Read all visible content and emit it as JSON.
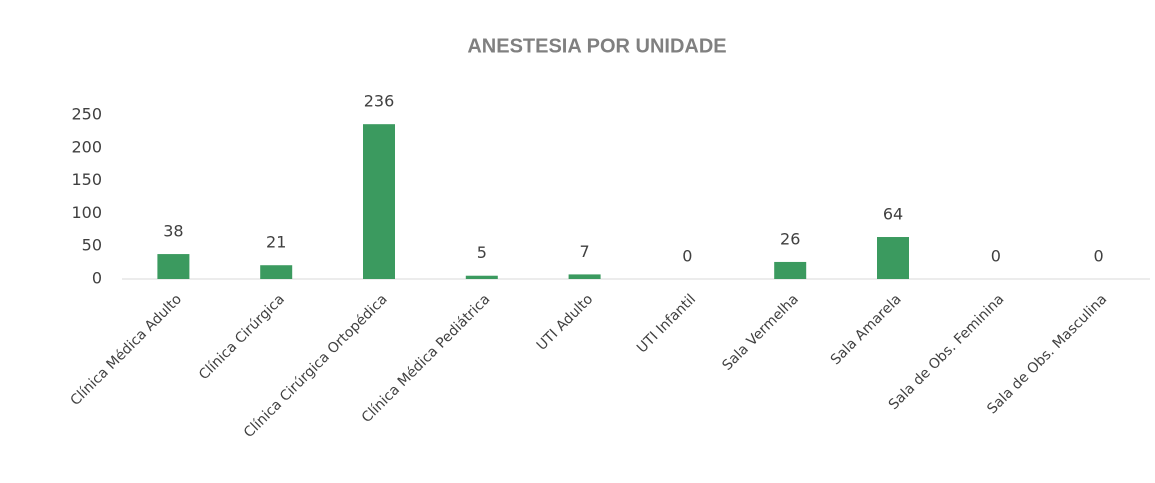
{
  "chart_data": {
    "type": "bar",
    "title": "ANESTESIA POR UNIDADE",
    "categories": [
      "Clínica Médica Adulto",
      "Clínica Cirúrgica",
      "Clínica Cirúrgica Ortopédica",
      "Clínica Médica Pediátrica",
      "UTI Adulto",
      "UTI Infantil",
      "Sala Vermelha",
      "Sala Amarela",
      "Sala de Obs. Feminina",
      "Sala de Obs. Masculina"
    ],
    "values": [
      38,
      21,
      236,
      5,
      7,
      0,
      26,
      64,
      0,
      0
    ],
    "color": "#3b9a5f",
    "ylim": [
      0,
      250
    ],
    "yticks": [
      0,
      50,
      100,
      150,
      200,
      250
    ],
    "grid": false
  }
}
